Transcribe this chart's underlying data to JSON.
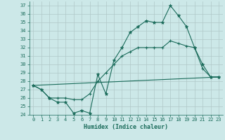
{
  "xlabel": "Humidex (Indice chaleur)",
  "bg_color": "#cce8e8",
  "grid_color": "#d4d4d4",
  "line_color": "#1a6b5a",
  "xlim": [
    -0.5,
    23.5
  ],
  "ylim": [
    24,
    37.5
  ],
  "yticks": [
    24,
    25,
    26,
    27,
    28,
    29,
    30,
    31,
    32,
    33,
    34,
    35,
    36,
    37
  ],
  "xticks": [
    0,
    1,
    2,
    3,
    4,
    5,
    6,
    7,
    8,
    9,
    10,
    11,
    12,
    13,
    14,
    15,
    16,
    17,
    18,
    19,
    20,
    21,
    22,
    23
  ],
  "line1_x": [
    0,
    1,
    2,
    3,
    4,
    5,
    6,
    7,
    8,
    9,
    10,
    11,
    12,
    13,
    14,
    15,
    16,
    17,
    18,
    19,
    20,
    21,
    22,
    23
  ],
  "line1_y": [
    27.5,
    27.0,
    26.0,
    25.5,
    25.5,
    24.2,
    24.5,
    24.2,
    28.8,
    26.5,
    30.5,
    32.0,
    33.8,
    34.5,
    35.2,
    35.0,
    35.0,
    37.0,
    35.8,
    34.5,
    32.0,
    30.0,
    28.5,
    28.5
  ],
  "line2_x": [
    0,
    1,
    2,
    3,
    4,
    5,
    6,
    7,
    8,
    9,
    10,
    11,
    12,
    13,
    14,
    15,
    16,
    17,
    18,
    19,
    20,
    21,
    22,
    23
  ],
  "line2_y": [
    27.5,
    27.0,
    26.0,
    26.0,
    26.0,
    25.8,
    25.8,
    26.5,
    28.0,
    29.0,
    30.0,
    31.0,
    31.5,
    32.0,
    32.0,
    32.0,
    32.0,
    32.8,
    32.5,
    32.2,
    32.0,
    29.5,
    28.5,
    28.5
  ],
  "line3_x": [
    0,
    23
  ],
  "line3_y": [
    27.5,
    28.5
  ]
}
